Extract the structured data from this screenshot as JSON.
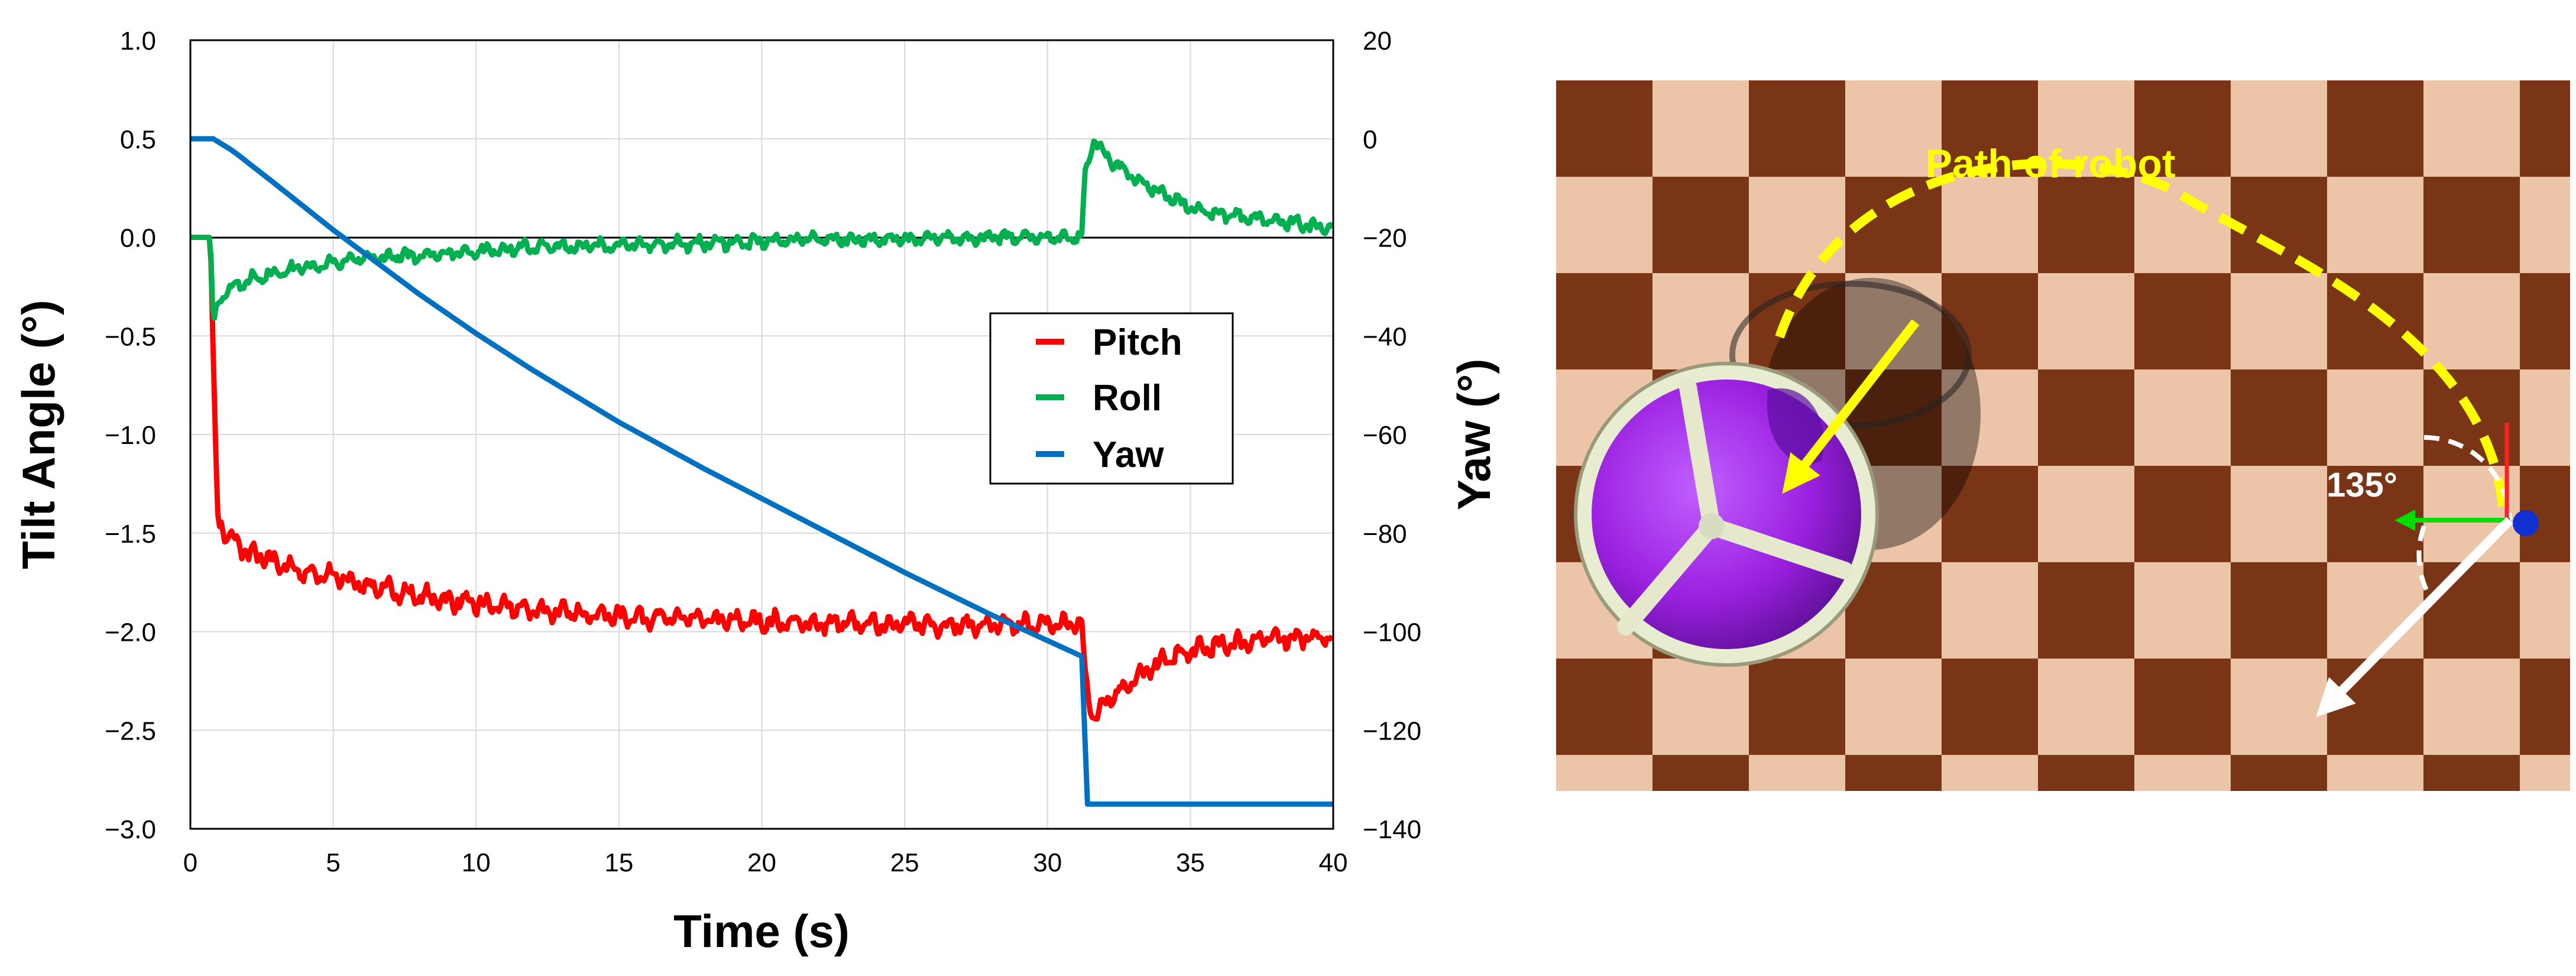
{
  "chart_data": {
    "type": "line",
    "xlabel": "Time (s)",
    "ylabel": "Tilt Angle (°)",
    "y2label": "Yaw (°)",
    "xlim": [
      0,
      40
    ],
    "ylim": [
      -3.0,
      1.0
    ],
    "y2lim": [
      -140,
      20
    ],
    "xticks": [
      "0",
      "5",
      "10",
      "15",
      "20",
      "25",
      "30",
      "35",
      "40"
    ],
    "yticks": [
      "1.0",
      "0.5",
      "0.0",
      "−0.5",
      "−1.0",
      "−1.5",
      "−2.0",
      "−2.5",
      "−3.0"
    ],
    "y2ticks": [
      "20",
      "0",
      "−20",
      "−40",
      "−60",
      "−80",
      "−100",
      "−120",
      "−140"
    ],
    "grid": true,
    "legend_position": "center-right",
    "series": [
      {
        "name": "Pitch",
        "axis": "left",
        "color": "#ff0000",
        "x": [
          0,
          0.7,
          0.8,
          0.95,
          1.2,
          2,
          3,
          4,
          5,
          6,
          8,
          10,
          12,
          15,
          18,
          20,
          22,
          25,
          28,
          31.2,
          31.3,
          31.6,
          32,
          33,
          34,
          35,
          36,
          37,
          38,
          40
        ],
        "y": [
          0,
          0,
          -0.6,
          -1.4,
          -1.5,
          -1.6,
          -1.65,
          -1.7,
          -1.72,
          -1.76,
          -1.82,
          -1.86,
          -1.89,
          -1.92,
          -1.94,
          -1.95,
          -1.96,
          -1.96,
          -1.97,
          -1.96,
          -2.2,
          -2.45,
          -2.35,
          -2.25,
          -2.15,
          -2.1,
          -2.07,
          -2.05,
          -2.03,
          -2.03
        ],
        "noise": 0.05
      },
      {
        "name": "Roll",
        "axis": "left",
        "color": "#00b050",
        "x": [
          0,
          0.7,
          0.8,
          0.9,
          1.2,
          2,
          3,
          4,
          5,
          6,
          8,
          10,
          12,
          15,
          18,
          20,
          22,
          25,
          28,
          31.2,
          31.3,
          31.6,
          32,
          33,
          34,
          35,
          36,
          37,
          38,
          40
        ],
        "y": [
          0,
          0,
          -0.45,
          -0.35,
          -0.28,
          -0.22,
          -0.18,
          -0.15,
          -0.13,
          -0.11,
          -0.09,
          -0.07,
          -0.05,
          -0.04,
          -0.03,
          -0.02,
          -0.01,
          -0.01,
          0.0,
          0.0,
          0.3,
          0.5,
          0.42,
          0.3,
          0.22,
          0.15,
          0.12,
          0.1,
          0.08,
          0.05
        ],
        "noise": 0.035
      },
      {
        "name": "Yaw",
        "axis": "right",
        "color": "#0070c0",
        "x": [
          0,
          0.8,
          1.5,
          3,
          5,
          8,
          10,
          12,
          15,
          18,
          20,
          22,
          25,
          28,
          31.2,
          31.3,
          35,
          40
        ],
        "y": [
          0,
          0,
          -2.5,
          -9.3,
          -18.5,
          -31.5,
          -39.5,
          -47,
          -57.5,
          -67,
          -73,
          -79,
          -88,
          -96.5,
          -105,
          -135,
          -135,
          -135
        ],
        "noise": 0
      }
    ]
  },
  "scene": {
    "path_label": "Path of robot",
    "angle_label": "135°",
    "colors": {
      "path": "#ffff00",
      "board_dark": "#7a3416",
      "board_light": "#ecc4a7",
      "sphere": "#9b20e0"
    }
  }
}
